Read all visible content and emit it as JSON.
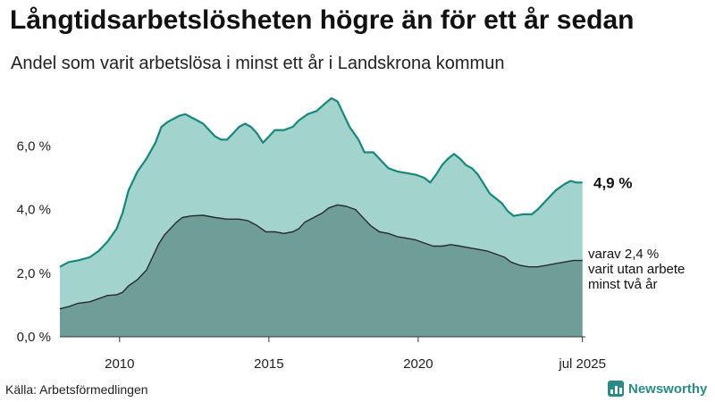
{
  "title": "Långtidsarbetslösheten högre än för ett år sedan",
  "subtitle": "Andel som varit arbetslösa i minst ett år i Landskrona kommun",
  "source": "Källa: Arbetsförmedlingen",
  "brand": {
    "name": "Newsworthy",
    "icon": "newsworthy-logo-icon"
  },
  "colors": {
    "outer_fill": "#a2d4cd",
    "outer_line": "#16877b",
    "inner_fill": "#6f9d98",
    "inner_line": "#2a2a2a",
    "brand": "#2b8a83"
  },
  "chart_data": {
    "type": "area",
    "ylim": [
      0,
      7.5
    ],
    "yticks": [
      {
        "value": 0,
        "label": "0,0 %"
      },
      {
        "value": 2,
        "label": "2,0 %"
      },
      {
        "value": 4,
        "label": "4,0 %"
      },
      {
        "value": 6,
        "label": "6,0 %"
      }
    ],
    "xlim": [
      2008.0,
      2025.6
    ],
    "xticks": [
      {
        "value": 2010.0,
        "label": "2010"
      },
      {
        "value": 2015.0,
        "label": "2015"
      },
      {
        "value": 2020.0,
        "label": "2020"
      },
      {
        "value": 2025.5,
        "label": "jul 2025"
      }
    ],
    "series": [
      {
        "key": "total",
        "end_label": "4,9 %",
        "points": [
          [
            2008.0,
            2.2
          ],
          [
            2008.3,
            2.35
          ],
          [
            2008.6,
            2.4
          ],
          [
            2009.0,
            2.5
          ],
          [
            2009.3,
            2.7
          ],
          [
            2009.6,
            3.0
          ],
          [
            2009.9,
            3.4
          ],
          [
            2010.1,
            3.9
          ],
          [
            2010.3,
            4.6
          ],
          [
            2010.6,
            5.2
          ],
          [
            2010.9,
            5.6
          ],
          [
            2011.2,
            6.1
          ],
          [
            2011.4,
            6.6
          ],
          [
            2011.6,
            6.75
          ],
          [
            2011.8,
            6.85
          ],
          [
            2012.0,
            6.95
          ],
          [
            2012.2,
            7.0
          ],
          [
            2012.4,
            6.9
          ],
          [
            2012.6,
            6.8
          ],
          [
            2012.8,
            6.7
          ],
          [
            2013.0,
            6.5
          ],
          [
            2013.2,
            6.3
          ],
          [
            2013.4,
            6.2
          ],
          [
            2013.6,
            6.2
          ],
          [
            2013.8,
            6.4
          ],
          [
            2014.0,
            6.6
          ],
          [
            2014.2,
            6.7
          ],
          [
            2014.4,
            6.6
          ],
          [
            2014.6,
            6.4
          ],
          [
            2014.8,
            6.1
          ],
          [
            2015.0,
            6.3
          ],
          [
            2015.2,
            6.5
          ],
          [
            2015.5,
            6.5
          ],
          [
            2015.8,
            6.6
          ],
          [
            2016.0,
            6.8
          ],
          [
            2016.3,
            7.0
          ],
          [
            2016.6,
            7.1
          ],
          [
            2016.9,
            7.35
          ],
          [
            2017.1,
            7.5
          ],
          [
            2017.3,
            7.4
          ],
          [
            2017.5,
            7.0
          ],
          [
            2017.7,
            6.6
          ],
          [
            2018.0,
            6.2
          ],
          [
            2018.2,
            5.8
          ],
          [
            2018.5,
            5.8
          ],
          [
            2018.8,
            5.5
          ],
          [
            2019.0,
            5.3
          ],
          [
            2019.3,
            5.2
          ],
          [
            2019.6,
            5.15
          ],
          [
            2019.9,
            5.1
          ],
          [
            2020.2,
            5.0
          ],
          [
            2020.4,
            4.85
          ],
          [
            2020.6,
            5.1
          ],
          [
            2020.8,
            5.4
          ],
          [
            2021.0,
            5.6
          ],
          [
            2021.2,
            5.75
          ],
          [
            2021.4,
            5.6
          ],
          [
            2021.6,
            5.4
          ],
          [
            2021.8,
            5.3
          ],
          [
            2022.0,
            5.1
          ],
          [
            2022.2,
            4.8
          ],
          [
            2022.4,
            4.5
          ],
          [
            2022.6,
            4.35
          ],
          [
            2022.8,
            4.2
          ],
          [
            2023.0,
            3.95
          ],
          [
            2023.2,
            3.8
          ],
          [
            2023.5,
            3.85
          ],
          [
            2023.8,
            3.85
          ],
          [
            2024.0,
            4.0
          ],
          [
            2024.3,
            4.3
          ],
          [
            2024.6,
            4.6
          ],
          [
            2024.9,
            4.8
          ],
          [
            2025.1,
            4.9
          ],
          [
            2025.3,
            4.85
          ],
          [
            2025.5,
            4.85
          ]
        ]
      },
      {
        "key": "two_years",
        "end_label": "varav 2,4 %\nvarit utan arbete\nminst två år",
        "points": [
          [
            2008.0,
            0.88
          ],
          [
            2008.3,
            0.95
          ],
          [
            2008.6,
            1.05
          ],
          [
            2009.0,
            1.1
          ],
          [
            2009.3,
            1.2
          ],
          [
            2009.6,
            1.3
          ],
          [
            2009.9,
            1.32
          ],
          [
            2010.1,
            1.4
          ],
          [
            2010.3,
            1.6
          ],
          [
            2010.6,
            1.8
          ],
          [
            2010.9,
            2.1
          ],
          [
            2011.1,
            2.5
          ],
          [
            2011.3,
            2.9
          ],
          [
            2011.5,
            3.2
          ],
          [
            2011.7,
            3.4
          ],
          [
            2011.9,
            3.6
          ],
          [
            2012.1,
            3.75
          ],
          [
            2012.4,
            3.8
          ],
          [
            2012.8,
            3.82
          ],
          [
            2013.2,
            3.75
          ],
          [
            2013.6,
            3.7
          ],
          [
            2014.0,
            3.7
          ],
          [
            2014.3,
            3.65
          ],
          [
            2014.6,
            3.5
          ],
          [
            2014.9,
            3.3
          ],
          [
            2015.2,
            3.3
          ],
          [
            2015.5,
            3.25
          ],
          [
            2015.8,
            3.3
          ],
          [
            2016.0,
            3.4
          ],
          [
            2016.2,
            3.6
          ],
          [
            2016.5,
            3.75
          ],
          [
            2016.8,
            3.9
          ],
          [
            2017.0,
            4.05
          ],
          [
            2017.3,
            4.15
          ],
          [
            2017.6,
            4.1
          ],
          [
            2017.9,
            4.0
          ],
          [
            2018.1,
            3.8
          ],
          [
            2018.4,
            3.5
          ],
          [
            2018.7,
            3.3
          ],
          [
            2019.0,
            3.25
          ],
          [
            2019.3,
            3.15
          ],
          [
            2019.6,
            3.1
          ],
          [
            2019.9,
            3.05
          ],
          [
            2020.2,
            2.95
          ],
          [
            2020.5,
            2.85
          ],
          [
            2020.8,
            2.85
          ],
          [
            2021.1,
            2.9
          ],
          [
            2021.4,
            2.85
          ],
          [
            2021.7,
            2.8
          ],
          [
            2022.0,
            2.75
          ],
          [
            2022.3,
            2.7
          ],
          [
            2022.6,
            2.6
          ],
          [
            2022.9,
            2.5
          ],
          [
            2023.1,
            2.35
          ],
          [
            2023.4,
            2.25
          ],
          [
            2023.7,
            2.2
          ],
          [
            2024.0,
            2.2
          ],
          [
            2024.3,
            2.25
          ],
          [
            2024.6,
            2.3
          ],
          [
            2024.9,
            2.35
          ],
          [
            2025.2,
            2.4
          ],
          [
            2025.5,
            2.4
          ]
        ]
      }
    ]
  }
}
